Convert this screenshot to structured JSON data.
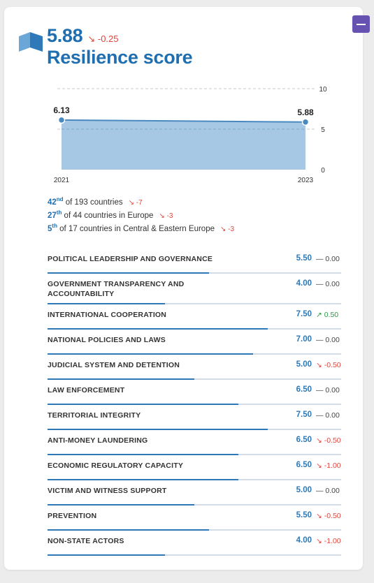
{
  "header": {
    "score": "5.88",
    "score_delta": "↘ -0.25",
    "title": "Resilience score"
  },
  "chart_data": {
    "type": "area",
    "x": [
      "2021",
      "2023"
    ],
    "values": [
      6.13,
      5.88
    ],
    "value_labels": [
      "6.13",
      "5.88"
    ],
    "x_tick_labels": [
      "2021",
      "2023"
    ],
    "y_ticks": [
      10,
      5,
      0
    ],
    "ylim": [
      0,
      10
    ],
    "grid": true,
    "color": "#a6c8e4",
    "line_color": "#4a89bf"
  },
  "ranks": [
    {
      "pos": "42",
      "suffix": "nd",
      "text": " of 193 countries",
      "delta": "↘ -7"
    },
    {
      "pos": "27",
      "suffix": "th",
      "text": " of 44 countries in Europe",
      "delta": "↘ -3"
    },
    {
      "pos": "5",
      "suffix": "th",
      "text": " of 17 countries in Central & Eastern Europe",
      "delta": "↘ -3"
    }
  ],
  "indicators": [
    {
      "name": "POLITICAL LEADERSHIP AND GOVERNANCE",
      "value": "5.50",
      "fraction": 0.55,
      "change": "— 0.00",
      "trend": "flat"
    },
    {
      "name": "GOVERNMENT TRANSPARENCY AND ACCOUNTABILITY",
      "value": "4.00",
      "fraction": 0.4,
      "change": "— 0.00",
      "trend": "flat"
    },
    {
      "name": "INTERNATIONAL COOPERATION",
      "value": "7.50",
      "fraction": 0.75,
      "change": "↗ 0.50",
      "trend": "up"
    },
    {
      "name": "NATIONAL POLICIES AND LAWS",
      "value": "7.00",
      "fraction": 0.7,
      "change": "— 0.00",
      "trend": "flat"
    },
    {
      "name": "JUDICIAL SYSTEM AND DETENTION",
      "value": "5.00",
      "fraction": 0.5,
      "change": "↘ -0.50",
      "trend": "down"
    },
    {
      "name": "LAW ENFORCEMENT",
      "value": "6.50",
      "fraction": 0.65,
      "change": "— 0.00",
      "trend": "flat"
    },
    {
      "name": "TERRITORIAL INTEGRITY",
      "value": "7.50",
      "fraction": 0.75,
      "change": "— 0.00",
      "trend": "flat"
    },
    {
      "name": "ANTI-MONEY LAUNDERING",
      "value": "6.50",
      "fraction": 0.65,
      "change": "↘ -0.50",
      "trend": "down"
    },
    {
      "name": "ECONOMIC REGULATORY CAPACITY",
      "value": "6.50",
      "fraction": 0.65,
      "change": "↘ -1.00",
      "trend": "down"
    },
    {
      "name": "VICTIM AND WITNESS SUPPORT",
      "value": "5.00",
      "fraction": 0.5,
      "change": "— 0.00",
      "trend": "flat"
    },
    {
      "name": "PREVENTION",
      "value": "5.50",
      "fraction": 0.55,
      "change": "↘ -0.50",
      "trend": "down"
    },
    {
      "name": "NON-STATE ACTORS",
      "value": "4.00",
      "fraction": 0.4,
      "change": "↘ -1.00",
      "trend": "down"
    }
  ],
  "icons": {
    "header_icon": "cube-icon",
    "collapse": "minus-icon"
  },
  "colors": {
    "accent": "#1f6fb0",
    "button": "#6652b0",
    "down": "#e0443c",
    "up": "#2e9a48"
  }
}
